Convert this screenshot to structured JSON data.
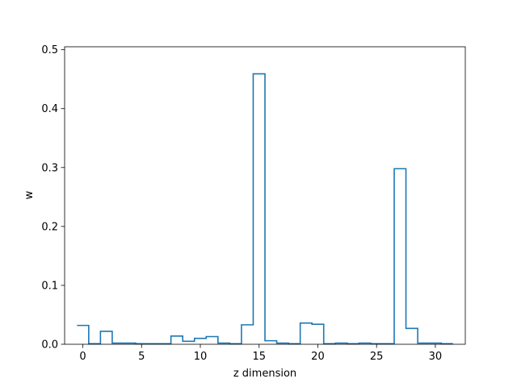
{
  "chart_data": {
    "type": "step",
    "title": "",
    "xlabel": "z dimension",
    "ylabel": "w",
    "xlim": [
      -1.55,
      32.55
    ],
    "ylim": [
      0,
      0.505
    ],
    "x": [
      0,
      1,
      2,
      3,
      4,
      5,
      6,
      7,
      8,
      9,
      10,
      11,
      12,
      13,
      14,
      15,
      16,
      17,
      18,
      19,
      20,
      21,
      22,
      23,
      24,
      25,
      26,
      27,
      28,
      29,
      30,
      31
    ],
    "values": [
      0.032,
      0.001,
      0.022,
      0.002,
      0.002,
      0.001,
      0.001,
      0.001,
      0.014,
      0.005,
      0.01,
      0.013,
      0.002,
      0.001,
      0.033,
      0.459,
      0.006,
      0.002,
      0.001,
      0.036,
      0.034,
      0.001,
      0.002,
      0.001,
      0.002,
      0.001,
      0.001,
      0.298,
      0.027,
      0.002,
      0.002,
      0.001
    ],
    "xticks": [
      "0",
      "5",
      "10",
      "15",
      "20",
      "25",
      "30"
    ],
    "xtick_values": [
      0,
      5,
      10,
      15,
      20,
      25,
      30
    ],
    "yticks": [
      "0.0",
      "0.1",
      "0.2",
      "0.3",
      "0.4",
      "0.5"
    ],
    "ytick_values": [
      0,
      0.1,
      0.2,
      0.3,
      0.4,
      0.5
    ],
    "line_color": "#1f77b4",
    "grid": false,
    "legend": "none"
  }
}
